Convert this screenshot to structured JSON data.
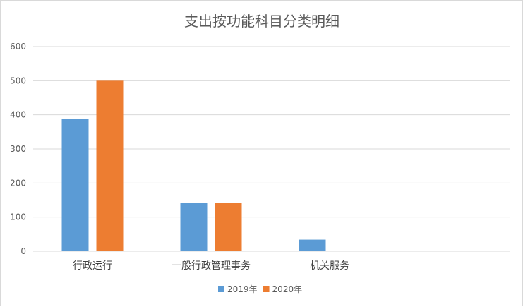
{
  "chart_data": {
    "type": "bar",
    "title": "支出按功能科目分类明细",
    "categories": [
      "行政运行",
      "一般行政管理事务",
      "机关服务"
    ],
    "series": [
      {
        "name": "2019年",
        "color": "#5b9bd5",
        "values": [
          387,
          141,
          34
        ]
      },
      {
        "name": "2020年",
        "color": "#ed7d31",
        "values": [
          500,
          141,
          0
        ]
      }
    ],
    "ylim": [
      0,
      600
    ],
    "yticks": [
      0,
      100,
      200,
      300,
      400,
      500,
      600
    ],
    "grid": true,
    "legend": "bottom",
    "xlabel": "",
    "ylabel": ""
  }
}
